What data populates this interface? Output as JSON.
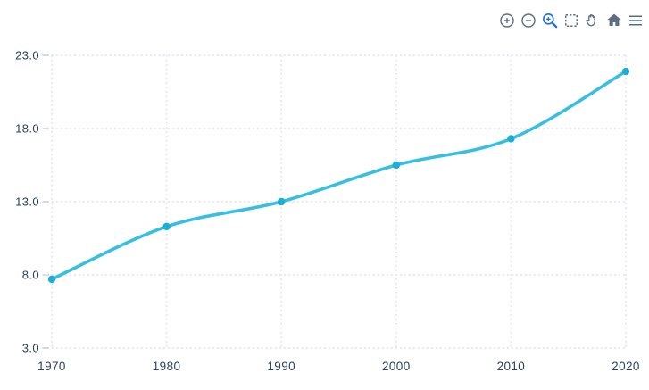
{
  "toolbar": {
    "active_color": "#1e6fe0",
    "inactive_color": "#5b6e80",
    "icons": [
      {
        "name": "zoom-in-icon",
        "active": false
      },
      {
        "name": "zoom-out-icon",
        "active": false
      },
      {
        "name": "zoom-magnifier-icon",
        "active": true
      },
      {
        "name": "box-select-icon",
        "active": false
      },
      {
        "name": "pan-hand-icon",
        "active": false
      },
      {
        "name": "home-icon",
        "active": false
      },
      {
        "name": "menu-icon",
        "active": false
      }
    ]
  },
  "chart_data": {
    "type": "line",
    "title": "",
    "x": [
      1970,
      1980,
      1990,
      2000,
      2010,
      2020
    ],
    "values": [
      7.7,
      11.3,
      13.0,
      15.5,
      17.3,
      21.9
    ],
    "x_tick_labels": [
      "1970",
      "1980",
      "1990",
      "2000",
      "2010",
      "2020"
    ],
    "y_ticks": [
      3,
      8,
      13,
      18,
      23
    ],
    "y_tick_labels": [
      "3.0",
      "8.0",
      "13.0",
      "18.0",
      "23.0"
    ],
    "xlim": [
      1970,
      2020
    ],
    "ylim": [
      3,
      23
    ],
    "xlabel": "",
    "ylabel": "",
    "grid": "dotted",
    "legend": "none",
    "smooth": true,
    "line_color": "#38bfe0",
    "marker_color": "#1caed6",
    "grid_color": "#e3e8ee",
    "tick_color": "#c4cdd6",
    "label_color": "#2b3f5f"
  }
}
